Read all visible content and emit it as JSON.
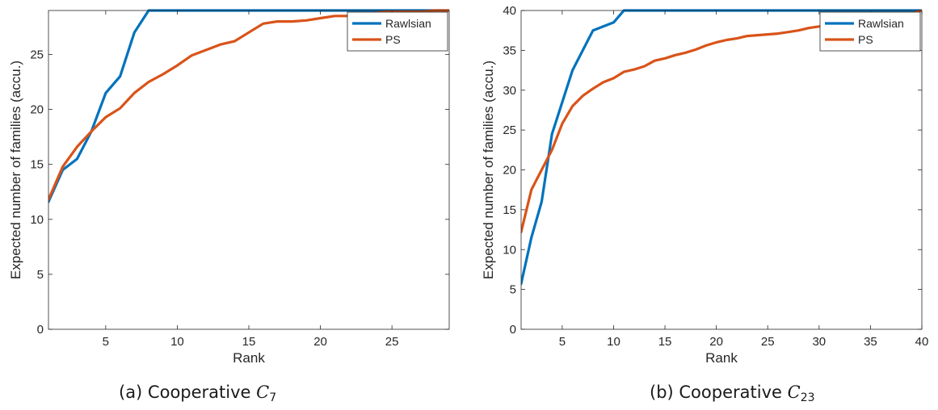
{
  "chart_data": [
    {
      "type": "line",
      "caption": {
        "prefix": "(a) Cooperative ",
        "symbol": "C",
        "subscript": "7"
      },
      "xlabel": "Rank",
      "ylabel": "Expected number of families (accu.)",
      "xlim": [
        1,
        29
      ],
      "ylim": [
        0,
        29
      ],
      "xticks": [
        5,
        10,
        15,
        20,
        25
      ],
      "yticks": [
        0,
        5,
        10,
        15,
        20,
        25
      ],
      "grid": false,
      "legend_position": "top-right",
      "series": [
        {
          "name": "Rawlsian",
          "color": "#0072BD",
          "x": [
            1,
            2,
            3,
            4,
            5,
            6,
            7,
            8,
            9,
            10,
            11,
            12,
            13,
            14,
            15,
            16,
            17,
            18,
            19,
            20,
            21,
            22,
            23,
            24,
            25,
            26,
            27,
            28,
            29
          ],
          "y": [
            11.6,
            14.5,
            15.5,
            18.0,
            21.5,
            23.0,
            27.0,
            29,
            29,
            29,
            29,
            29,
            29,
            29,
            29,
            29,
            29,
            29,
            29,
            29,
            29,
            29,
            29,
            29,
            29,
            29,
            29,
            29,
            29
          ]
        },
        {
          "name": "PS",
          "color": "#D95319",
          "x": [
            1,
            2,
            3,
            4,
            5,
            6,
            7,
            8,
            9,
            10,
            11,
            12,
            13,
            14,
            15,
            16,
            17,
            18,
            19,
            20,
            21,
            22,
            23,
            24,
            25,
            26,
            27,
            28,
            29
          ],
          "y": [
            11.8,
            14.8,
            16.6,
            18.0,
            19.3,
            20.1,
            21.5,
            22.5,
            23.2,
            24.0,
            24.9,
            25.4,
            25.9,
            26.2,
            27.0,
            27.8,
            28.0,
            28.0,
            28.1,
            28.3,
            28.5,
            28.5,
            28.7,
            28.8,
            28.9,
            28.9,
            28.9,
            29,
            29
          ]
        }
      ]
    },
    {
      "type": "line",
      "caption": {
        "prefix": "(b) Cooperative ",
        "symbol": "C",
        "subscript": "23"
      },
      "xlabel": "Rank",
      "ylabel": "Expected number of families (accu.)",
      "xlim": [
        1,
        40
      ],
      "ylim": [
        0,
        40
      ],
      "xticks": [
        5,
        10,
        15,
        20,
        25,
        30,
        35,
        40
      ],
      "yticks": [
        0,
        5,
        10,
        15,
        20,
        25,
        30,
        35,
        40
      ],
      "grid": false,
      "legend_position": "top-right",
      "series": [
        {
          "name": "Rawlsian",
          "color": "#0072BD",
          "x": [
            1,
            2,
            3,
            4,
            5,
            6,
            7,
            8,
            9,
            10,
            11,
            12,
            13,
            14,
            15,
            16,
            17,
            18,
            19,
            20,
            21,
            22,
            23,
            24,
            25,
            26,
            27,
            28,
            29,
            30,
            31,
            32,
            33,
            34,
            35,
            36,
            37,
            38,
            39,
            40
          ],
          "y": [
            5.7,
            11.5,
            16.0,
            24.5,
            28.5,
            32.5,
            35.0,
            37.5,
            38.0,
            38.5,
            40,
            40,
            40,
            40,
            40,
            40,
            40,
            40,
            40,
            40,
            40,
            40,
            40,
            40,
            40,
            40,
            40,
            40,
            40,
            40,
            40,
            40,
            40,
            40,
            40,
            40,
            40,
            40,
            40,
            40
          ]
        },
        {
          "name": "PS",
          "color": "#D95319",
          "x": [
            1,
            2,
            3,
            4,
            5,
            6,
            7,
            8,
            9,
            10,
            11,
            12,
            13,
            14,
            15,
            16,
            17,
            18,
            19,
            20,
            21,
            22,
            23,
            24,
            25,
            26,
            27,
            28,
            29,
            30,
            31,
            32,
            33,
            34,
            35,
            36,
            37,
            38,
            39,
            40
          ],
          "y": [
            12.2,
            17.5,
            20.0,
            22.5,
            25.8,
            28.0,
            29.3,
            30.2,
            31.0,
            31.5,
            32.3,
            32.6,
            33.0,
            33.7,
            34.0,
            34.4,
            34.7,
            35.1,
            35.6,
            36.0,
            36.3,
            36.5,
            36.8,
            36.9,
            37.0,
            37.1,
            37.3,
            37.5,
            37.8,
            38.0,
            38.1,
            38.2,
            38.3,
            38.5,
            38.6,
            38.8,
            39.0,
            39.3,
            39.6,
            40
          ]
        }
      ]
    }
  ]
}
